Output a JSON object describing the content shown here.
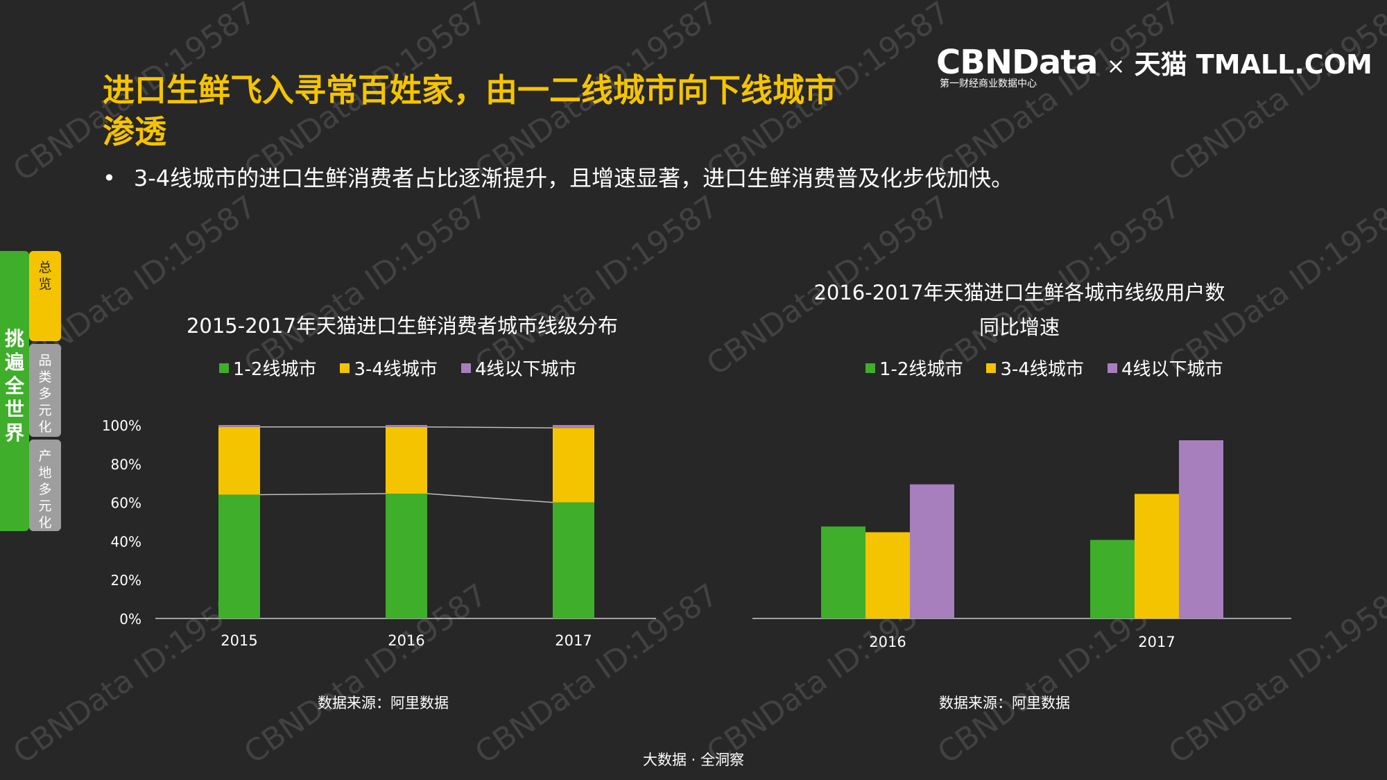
{
  "title": "进口生鲜飞入寻常百姓家，由一二线城市向下线城市渗透",
  "bullet": "3-4线城市的进口生鲜消费者占比逐渐提升，且增速显著，进口生鲜消费普及化步伐加快。",
  "bullet_marker": "•",
  "logo": {
    "cbndata": "CBNData",
    "times": "×",
    "tmall": "天猫 TMALL.COM",
    "subtitle": "第一财经商业数据中心"
  },
  "sidebar": {
    "main_label": "挑遍全世界",
    "tabs": [
      {
        "label": "总览"
      },
      {
        "label": "品类多元化"
      },
      {
        "label": "产地多元化"
      }
    ]
  },
  "colors": {
    "green": "#3fae2a",
    "yellow": "#f5c400",
    "purple": "#a77fbd",
    "background": "#272727"
  },
  "chart_data": [
    {
      "type": "bar",
      "stacked": true,
      "title": "2015-2017年天猫进口生鲜消费者城市线级分布",
      "categories": [
        "2015",
        "2016",
        "2017"
      ],
      "series": [
        {
          "name": "1-2线城市",
          "values": [
            64,
            64.5,
            60
          ]
        },
        {
          "name": "3-4线城市",
          "values": [
            35,
            34.5,
            38.5
          ]
        },
        {
          "name": "4线以下城市",
          "values": [
            1,
            1,
            1.5
          ]
        }
      ],
      "ylim": [
        0,
        100
      ],
      "yticks": [
        "0%",
        "20%",
        "40%",
        "60%",
        "80%",
        "100%"
      ],
      "legend": "top",
      "source": "数据来源：阿里数据"
    },
    {
      "type": "bar",
      "title": "2016-2017年天猫进口生鲜各城市线级用户数同比增速",
      "categories": [
        "2016",
        "2017"
      ],
      "series": [
        {
          "name": "1-2线城市",
          "values": [
            48,
            41
          ]
        },
        {
          "name": "3-4线城市",
          "values": [
            45,
            65
          ]
        },
        {
          "name": "4线以下城市",
          "values": [
            70,
            93
          ]
        }
      ],
      "legend": "top",
      "source": "数据来源：阿里数据"
    }
  ],
  "footer": "大数据 · 全洞察",
  "watermark": "CBNData ID:19587"
}
